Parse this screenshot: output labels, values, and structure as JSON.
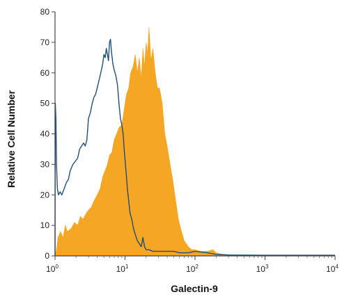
{
  "chart_data": {
    "type": "area",
    "xlabel": "Galectin-9",
    "ylabel": "Relative Cell Number",
    "xscale": "log",
    "xlim": [
      1,
      10000
    ],
    "ylim": [
      0,
      80
    ],
    "grid": false,
    "y_ticks": [
      0,
      10,
      20,
      30,
      40,
      50,
      60,
      70,
      80
    ],
    "x_ticks": [
      {
        "value": 1,
        "base": "10",
        "exp": "0"
      },
      {
        "value": 10,
        "base": "10",
        "exp": "1"
      },
      {
        "value": 100,
        "base": "10",
        "exp": "2"
      },
      {
        "value": 1000,
        "base": "10",
        "exp": "3"
      },
      {
        "value": 10000,
        "base": "10",
        "exp": "4"
      }
    ],
    "series": [
      {
        "style": "filled histogram",
        "color": "#f5a623",
        "points": [
          [
            1.0,
            0
          ],
          [
            1.05,
            2
          ],
          [
            1.1,
            6
          ],
          [
            1.2,
            8
          ],
          [
            1.3,
            6
          ],
          [
            1.4,
            10
          ],
          [
            1.5,
            8
          ],
          [
            1.7,
            9
          ],
          [
            1.9,
            11
          ],
          [
            2.1,
            10
          ],
          [
            2.3,
            13
          ],
          [
            2.5,
            12
          ],
          [
            2.8,
            14
          ],
          [
            3.0,
            15
          ],
          [
            3.3,
            16
          ],
          [
            3.6,
            18
          ],
          [
            4.0,
            20
          ],
          [
            4.4,
            22
          ],
          [
            4.8,
            26
          ],
          [
            5.2,
            28
          ],
          [
            5.6,
            30
          ],
          [
            6.0,
            33
          ],
          [
            6.5,
            34
          ],
          [
            7.0,
            38
          ],
          [
            7.6,
            40
          ],
          [
            8.2,
            42
          ],
          [
            9.0,
            43
          ],
          [
            9.7,
            48
          ],
          [
            10.5,
            53
          ],
          [
            11.3,
            55
          ],
          [
            12.0,
            60
          ],
          [
            13.0,
            62
          ],
          [
            14.0,
            66
          ],
          [
            15.0,
            60
          ],
          [
            16.0,
            65
          ],
          [
            17.0,
            58
          ],
          [
            18.0,
            68
          ],
          [
            19.0,
            62
          ],
          [
            20.0,
            70
          ],
          [
            21.0,
            66
          ],
          [
            22.0,
            75
          ],
          [
            23.5,
            64
          ],
          [
            25.0,
            68
          ],
          [
            27.0,
            60
          ],
          [
            29.0,
            55
          ],
          [
            31.0,
            55
          ],
          [
            34.0,
            50
          ],
          [
            37.0,
            40
          ],
          [
            40.0,
            36
          ],
          [
            44.0,
            30
          ],
          [
            48.0,
            25
          ],
          [
            53.0,
            18
          ],
          [
            58.0,
            12
          ],
          [
            64.0,
            8
          ],
          [
            70.0,
            5
          ],
          [
            80.0,
            3
          ],
          [
            90.0,
            2
          ],
          [
            100.0,
            2
          ],
          [
            120.0,
            1.5
          ],
          [
            150.0,
            1.5
          ],
          [
            180.0,
            2
          ],
          [
            200.0,
            1
          ],
          [
            250.0,
            0.5
          ],
          [
            400.0,
            0.3
          ],
          [
            1000.0,
            0.2
          ],
          [
            5000.0,
            0.2
          ],
          [
            10000.0,
            0.2
          ]
        ]
      },
      {
        "style": "outline histogram",
        "color": "#1f4e79",
        "points": [
          [
            1.0,
            0
          ],
          [
            1.01,
            50
          ],
          [
            1.03,
            45
          ],
          [
            1.05,
            30
          ],
          [
            1.08,
            22
          ],
          [
            1.12,
            20
          ],
          [
            1.18,
            21
          ],
          [
            1.25,
            20
          ],
          [
            1.35,
            22
          ],
          [
            1.45,
            24
          ],
          [
            1.55,
            25
          ],
          [
            1.65,
            28
          ],
          [
            1.8,
            30
          ],
          [
            1.95,
            31
          ],
          [
            2.1,
            32
          ],
          [
            2.25,
            35
          ],
          [
            2.4,
            36
          ],
          [
            2.55,
            37
          ],
          [
            2.7,
            36
          ],
          [
            2.85,
            38
          ],
          [
            3.0,
            45
          ],
          [
            3.2,
            47
          ],
          [
            3.4,
            50
          ],
          [
            3.6,
            52
          ],
          [
            3.8,
            53
          ],
          [
            4.0,
            55
          ],
          [
            4.2,
            57
          ],
          [
            4.4,
            59
          ],
          [
            4.6,
            61
          ],
          [
            4.8,
            63
          ],
          [
            5.0,
            66
          ],
          [
            5.2,
            65
          ],
          [
            5.4,
            68
          ],
          [
            5.6,
            66
          ],
          [
            5.8,
            64
          ],
          [
            6.0,
            70
          ],
          [
            6.2,
            71
          ],
          [
            6.4,
            67
          ],
          [
            6.7,
            63
          ],
          [
            7.0,
            61
          ],
          [
            7.4,
            59
          ],
          [
            7.8,
            56
          ],
          [
            8.2,
            50
          ],
          [
            8.6,
            45
          ],
          [
            9.0,
            43
          ],
          [
            9.4,
            40
          ],
          [
            9.8,
            34
          ],
          [
            10.3,
            28
          ],
          [
            10.8,
            22
          ],
          [
            11.3,
            18
          ],
          [
            11.8,
            14
          ],
          [
            12.5,
            12
          ],
          [
            13.2,
            9
          ],
          [
            14.0,
            7
          ],
          [
            15.0,
            5
          ],
          [
            16.0,
            4
          ],
          [
            17.0,
            3
          ],
          [
            18.0,
            6
          ],
          [
            19.0,
            3
          ],
          [
            20.0,
            2
          ],
          [
            22.0,
            2
          ],
          [
            25.0,
            1.5
          ],
          [
            30.0,
            1.5
          ],
          [
            35.0,
            1.5
          ],
          [
            40.0,
            1.5
          ],
          [
            50.0,
            1.5
          ],
          [
            60.0,
            1
          ],
          [
            80.0,
            1
          ],
          [
            100.0,
            1.5
          ],
          [
            150.0,
            1
          ],
          [
            200.0,
            0.5
          ],
          [
            300.0,
            0.3
          ],
          [
            1000.0,
            0.2
          ],
          [
            5000.0,
            0.2
          ],
          [
            10000.0,
            0.2
          ]
        ]
      }
    ]
  }
}
